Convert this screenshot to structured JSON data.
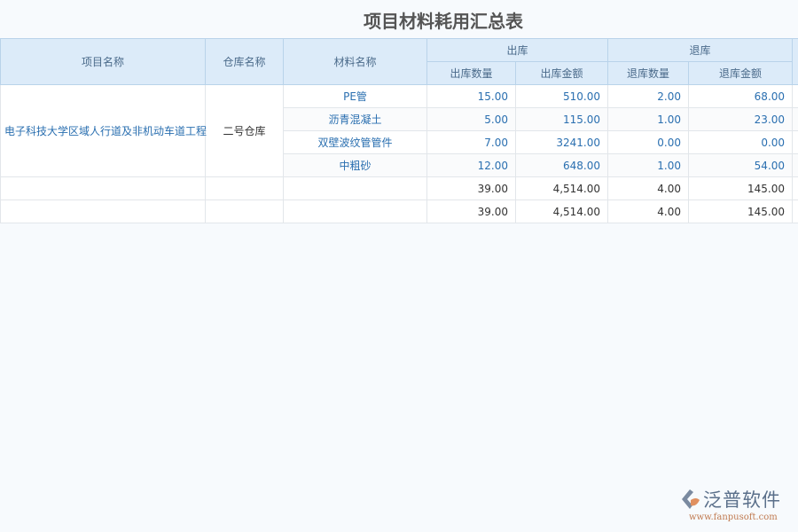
{
  "title": "项目材料耗用汇总表",
  "headers": {
    "project": "项目名称",
    "warehouse": "仓库名称",
    "material": "材料名称",
    "out_group": "出库",
    "return_group": "退库",
    "out_qty": "出库数量",
    "out_amount": "出库金额",
    "return_qty": "退库数量",
    "return_amount": "退库金额"
  },
  "project": "电子科技大学区域人行道及非机动车道工程",
  "warehouse": "二号仓库",
  "rows": [
    {
      "material": "PE管",
      "out_qty": "15.00",
      "out_amount": "510.00",
      "return_qty": "2.00",
      "return_amount": "68.00"
    },
    {
      "material": "沥青混凝土",
      "out_qty": "5.00",
      "out_amount": "115.00",
      "return_qty": "1.00",
      "return_amount": "23.00"
    },
    {
      "material": "双壁波纹管管件",
      "out_qty": "7.00",
      "out_amount": "3241.00",
      "return_qty": "0.00",
      "return_amount": "0.00"
    },
    {
      "material": "中粗砂",
      "out_qty": "12.00",
      "out_amount": "648.00",
      "return_qty": "1.00",
      "return_amount": "54.00"
    }
  ],
  "subtotal": {
    "out_qty": "39.00",
    "out_amount": "4,514.00",
    "return_qty": "4.00",
    "return_amount": "145.00"
  },
  "total": {
    "out_qty": "39.00",
    "out_amount": "4,514.00",
    "return_qty": "4.00",
    "return_amount": "145.00"
  },
  "logo": {
    "brand": "泛普软件",
    "url": "www.fanpusoft.com"
  }
}
